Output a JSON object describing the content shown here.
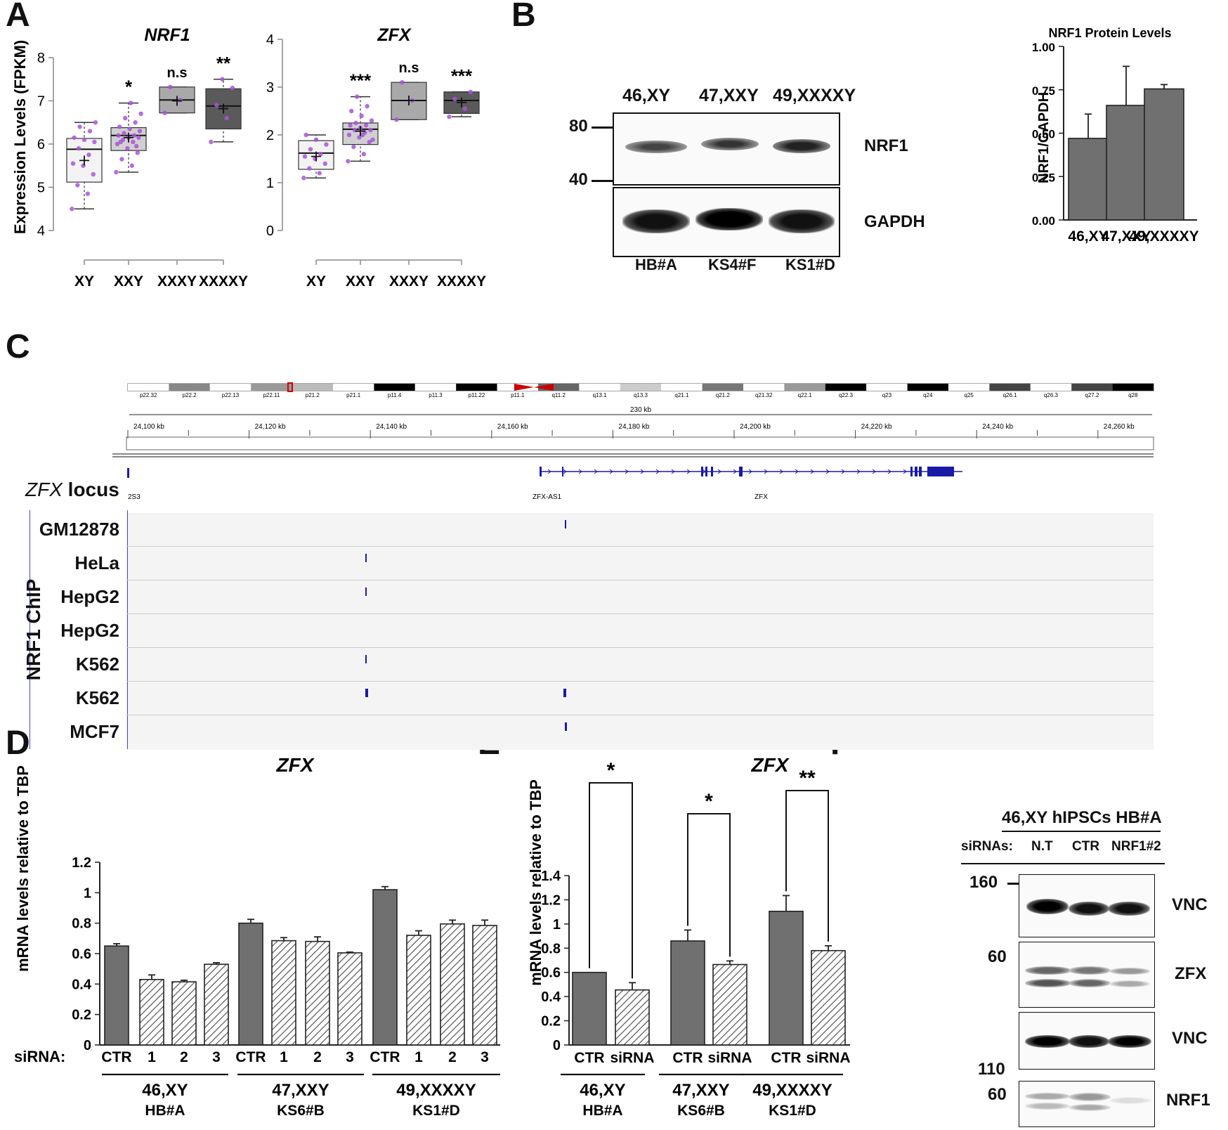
{
  "panel_labels": {
    "A": "A",
    "B": "B",
    "C": "C",
    "D": "D",
    "E": "E",
    "F": "F"
  },
  "colors": {
    "light": "#f3f3f3",
    "mid_light": "#d0d0d0",
    "mid": "#a9a9a9",
    "dark": "#5a5a5a",
    "bar_dark": "#707070",
    "dot": "#a855d8",
    "track_blue": "#1a1aa8",
    "ideo_red": "#cc0000"
  },
  "chart_data": [
    {
      "id": "A_NRF1",
      "type": "box",
      "title": "NRF1",
      "ylabel": "Expression Levels (FPKM)",
      "ylim": [
        4,
        8
      ],
      "yticks": [
        "4",
        "5",
        "6",
        "7",
        "8"
      ],
      "categories": [
        "XY",
        "XXY",
        "XXXY",
        "XXXXY"
      ],
      "significance": [
        "",
        "*",
        "n.s",
        "**"
      ],
      "boxes": [
        {
          "whisker_low": 4.5,
          "q1": 5.12,
          "median": 5.88,
          "q3": 6.13,
          "whisker_high": 6.5,
          "mean": 5.62,
          "fill": "light",
          "points": [
            4.5,
            4.85,
            5.05,
            5.3,
            5.5,
            5.55,
            5.75,
            5.9,
            6.05,
            6.1,
            6.15,
            6.3,
            6.4,
            6.5
          ]
        },
        {
          "whisker_low": 5.35,
          "q1": 5.85,
          "median": 6.2,
          "q3": 6.38,
          "whisker_high": 6.95,
          "mean": 6.15,
          "fill": "mid_light",
          "points": [
            5.35,
            5.5,
            5.65,
            5.8,
            5.9,
            6.0,
            6.05,
            6.1,
            6.15,
            6.15,
            6.2,
            6.2,
            6.25,
            6.3,
            6.35,
            6.4,
            6.5,
            6.6,
            6.7,
            6.95,
            6.05,
            5.95
          ]
        },
        {
          "whisker_low": 6.72,
          "q1": 6.72,
          "median": 7.02,
          "q3": 7.32,
          "whisker_high": 7.32,
          "mean": 7.0,
          "fill": "mid",
          "points": [
            6.72,
            7.02,
            7.32
          ]
        },
        {
          "whisker_low": 6.05,
          "q1": 6.35,
          "median": 6.88,
          "q3": 7.28,
          "whisker_high": 7.5,
          "mean": 6.82,
          "fill": "dark",
          "points": [
            6.05,
            6.6,
            6.9,
            7.3,
            7.5
          ]
        }
      ]
    },
    {
      "id": "A_ZFX",
      "type": "box",
      "title": "ZFX",
      "ylabel": "",
      "ylim": [
        0,
        4
      ],
      "yticks": [
        "0",
        "1",
        "2",
        "3",
        "4"
      ],
      "categories": [
        "XY",
        "XXY",
        "XXXY",
        "XXXXY"
      ],
      "significance": [
        "",
        "***",
        "n.s",
        "***"
      ],
      "boxes": [
        {
          "whisker_low": 1.1,
          "q1": 1.28,
          "median": 1.62,
          "q3": 1.88,
          "whisker_high": 2.0,
          "mean": 1.55,
          "fill": "light",
          "points": [
            1.1,
            1.2,
            1.3,
            1.4,
            1.5,
            1.55,
            1.6,
            1.7,
            1.8,
            1.9,
            2.0
          ]
        },
        {
          "whisker_low": 1.45,
          "q1": 1.8,
          "median": 2.12,
          "q3": 2.25,
          "whisker_high": 2.8,
          "mean": 2.08,
          "fill": "mid_light",
          "points": [
            1.45,
            1.6,
            1.75,
            1.85,
            1.95,
            2.0,
            2.05,
            2.1,
            2.1,
            2.15,
            2.2,
            2.2,
            2.25,
            2.3,
            2.4,
            2.5,
            2.6,
            2.8,
            1.9,
            2.0
          ]
        },
        {
          "whisker_low": 2.32,
          "q1": 2.32,
          "median": 2.72,
          "q3": 3.1,
          "whisker_high": 3.1,
          "mean": 2.72,
          "fill": "mid",
          "points": [
            2.32,
            2.72,
            3.1
          ]
        },
        {
          "whisker_low": 2.38,
          "q1": 2.45,
          "median": 2.72,
          "q3": 2.9,
          "whisker_high": 2.9,
          "mean": 2.68,
          "fill": "dark",
          "points": [
            2.38,
            2.55,
            2.75,
            2.9
          ]
        }
      ]
    },
    {
      "id": "B_bar",
      "type": "bar",
      "title": "NRF1 Protein Levels",
      "ylabel": "NRF1/GAPDH",
      "ylim": [
        0,
        1
      ],
      "yticks": [
        "0.00",
        "0.25",
        "0.50",
        "0.75",
        "1.00"
      ],
      "categories": [
        "46,XY",
        "47,XXY",
        "49,XXXXY"
      ],
      "values": [
        0.47,
        0.66,
        0.755
      ],
      "errors": [
        0.14,
        0.225,
        0.025
      ]
    },
    {
      "id": "D_bar",
      "type": "bar",
      "title": "ZFX",
      "ylabel": "mRNA levels relative to TBP",
      "ylim": [
        0,
        1.2
      ],
      "yticks": [
        "0",
        "0.2",
        "0.4",
        "0.6",
        "0.8",
        "1",
        "1.2"
      ],
      "categories": [
        "CTR",
        "1",
        "2",
        "3",
        "CTR",
        "1",
        "2",
        "3",
        "CTR",
        "1",
        "2",
        "3"
      ],
      "values": [
        0.65,
        0.43,
        0.415,
        0.53,
        0.8,
        0.685,
        0.68,
        0.605,
        1.02,
        0.72,
        0.795,
        0.785
      ],
      "errors": [
        0.015,
        0.03,
        0.01,
        0.01,
        0.025,
        0.02,
        0.03,
        0.005,
        0.02,
        0.03,
        0.025,
        0.035
      ],
      "bar_style": [
        "solid",
        "hatched",
        "hatched",
        "hatched",
        "solid",
        "hatched",
        "hatched",
        "hatched",
        "solid",
        "hatched",
        "hatched",
        "hatched"
      ],
      "x_prefix": "siRNA:",
      "groups": [
        {
          "name": "46,XY",
          "line": "HB#A"
        },
        {
          "name": "47,XXY",
          "line": "KS6#B"
        },
        {
          "name": "49,XXXXY",
          "line": "KS1#D"
        }
      ]
    },
    {
      "id": "E_bar",
      "type": "bar",
      "title": "ZFX",
      "ylabel": "mRNA levels relative to TBP",
      "ylim": [
        0,
        1.4
      ],
      "yticks": [
        "0",
        "0.2",
        "0.4",
        "0.6",
        "0.8",
        "1",
        "1.2",
        "1.4"
      ],
      "categories": [
        "CTR",
        "siRNA",
        "CTR",
        "siRNA",
        "CTR",
        "siRNA"
      ],
      "values": [
        0.6,
        0.455,
        0.86,
        0.665,
        1.105,
        0.78
      ],
      "errors": [
        0,
        0.06,
        0.09,
        0.03,
        0.13,
        0.04
      ],
      "bar_style": [
        "solid",
        "hatched",
        "solid",
        "hatched",
        "solid",
        "hatched"
      ],
      "significance": [
        "*",
        "*",
        "**"
      ],
      "groups": [
        {
          "name": "46,XY",
          "line": "HB#A"
        },
        {
          "name": "47,XXY",
          "line": "KS6#B"
        },
        {
          "name": "49,XXXXY",
          "line": "KS1#D"
        }
      ]
    }
  ],
  "panel_b": {
    "karyotypes": [
      "46,XY",
      "47,XXY",
      "49,XXXXY"
    ],
    "markers": [
      "80",
      "40"
    ],
    "bands": [
      "NRF1",
      "GAPDH"
    ],
    "cell_lines": [
      "HB#A",
      "KS4#F",
      "KS1#D"
    ]
  },
  "panel_c": {
    "bands": [
      "p22.32",
      "p22.2",
      "p22.13",
      "p22.11",
      "p21.2",
      "p21.1",
      "p11.4",
      "p11.3",
      "p11.22",
      "p11.1",
      "q11.2",
      "q13.1",
      "q13.3",
      "q21.1",
      "q21.2",
      "q21.32",
      "q22.1",
      "q22.3",
      "q23",
      "q24",
      "q25",
      "q26.1",
      "q26.3",
      "q27.2",
      "q28"
    ],
    "span": "230 kb",
    "ruler": [
      "24,100 kb",
      "24,120 kb",
      "24,140 kb",
      "24,160 kb",
      "24,180 kb",
      "24,200 kb",
      "24,220 kb",
      "24,240 kb",
      "24,260 kb"
    ],
    "locus_gene": "ZFX",
    "locus_word": "locus",
    "genes": [
      "2S3",
      "ZFX-AS1",
      "ZFX"
    ],
    "chip_label": "NRF1 ChIP",
    "tracks": [
      "GM12878",
      "HeLa",
      "HepG2",
      "HepG2",
      "K562",
      "K562",
      "MCF7"
    ]
  },
  "panel_f": {
    "title": "46,XY hIPSCs HB#A",
    "sirna_label": "siRNAs:",
    "lanes": [
      "N.T",
      "CTR",
      "NRF1#2"
    ],
    "markers": [
      "160",
      "60",
      "110",
      "60"
    ],
    "bands": [
      "VNC",
      "ZFX",
      "VNC",
      "NRF1"
    ]
  }
}
